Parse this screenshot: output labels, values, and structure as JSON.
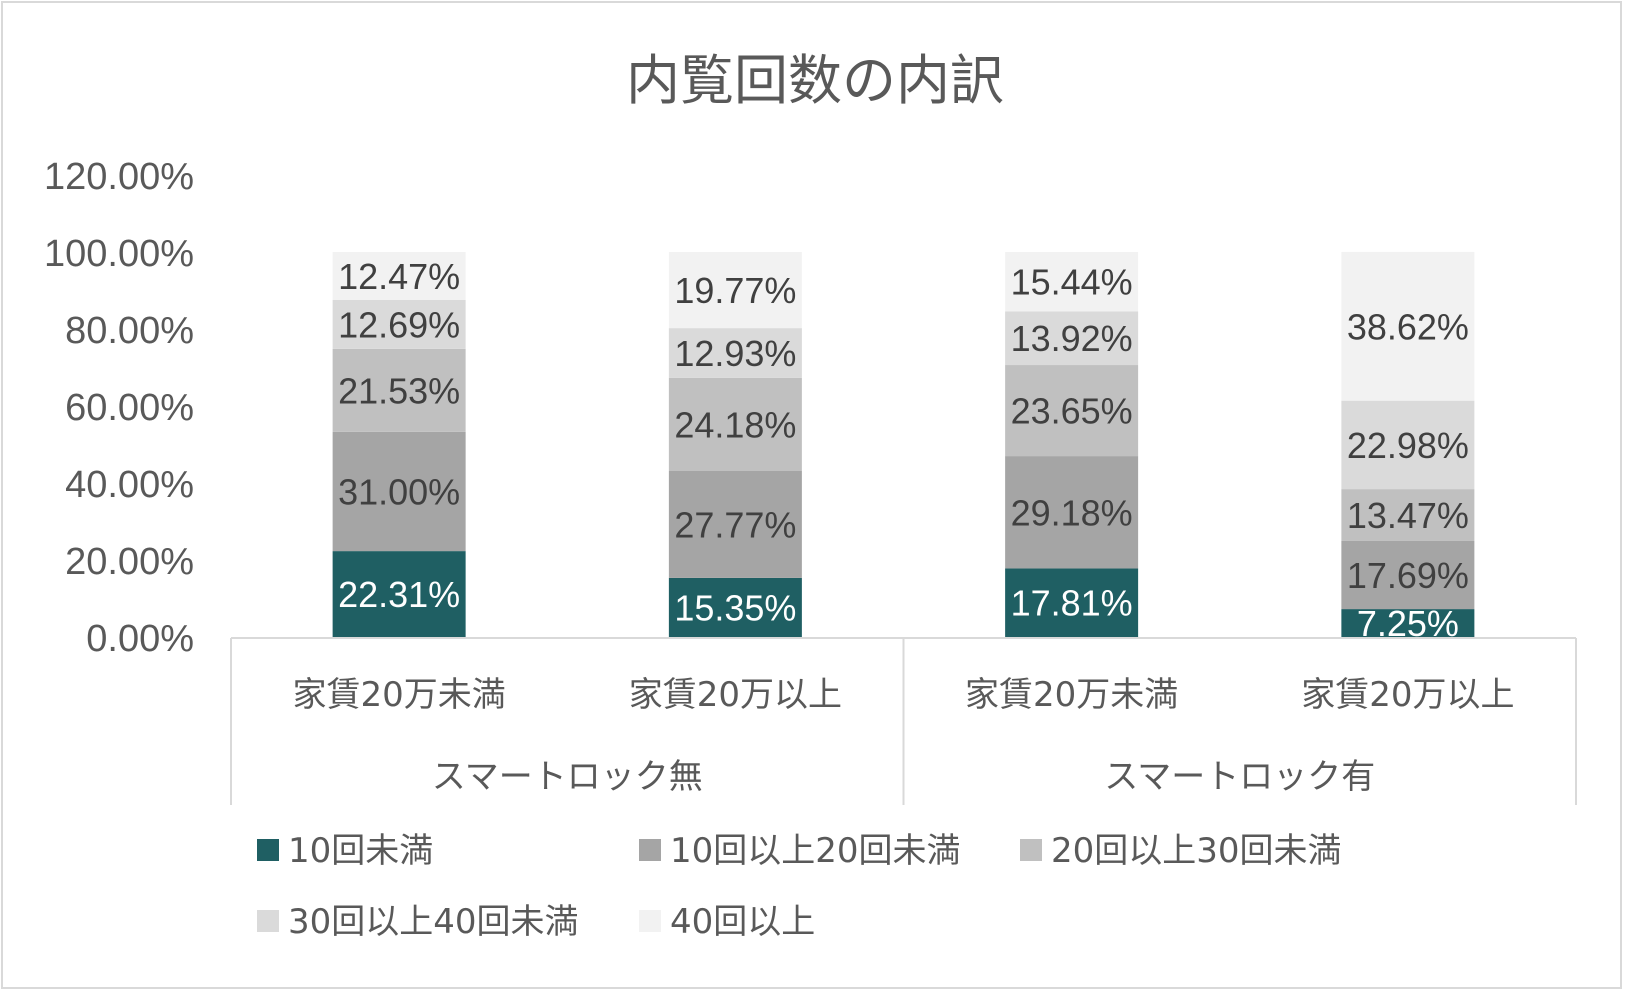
{
  "chart_data": {
    "type": "bar",
    "stacked": true,
    "title": "内覧回数の内訳",
    "categories": [
      "家賃20万未満",
      "家賃20万以上",
      "家賃20万未満",
      "家賃20万以上"
    ],
    "groups": [
      {
        "label": "スマートロック無",
        "categories": [
          0,
          1
        ]
      },
      {
        "label": "スマートロック有",
        "categories": [
          2,
          3
        ]
      }
    ],
    "ylim": [
      0,
      120
    ],
    "yticks": [
      "0.00%",
      "20.00%",
      "40.00%",
      "60.00%",
      "80.00%",
      "100.00%",
      "120.00%"
    ],
    "legend_position": "bottom",
    "grid": false,
    "series": [
      {
        "name": "10回未満",
        "color": "#1f5f63",
        "label_color": "#ffffff",
        "values": [
          22.31,
          15.35,
          17.81,
          7.25
        ],
        "labels": [
          "22.31%",
          "15.35%",
          "17.81%",
          "7.25%"
        ]
      },
      {
        "name": "10回以上20回未満",
        "color": "#a5a5a5",
        "label_color": "#404040",
        "values": [
          31.0,
          27.77,
          29.18,
          17.69
        ],
        "labels": [
          "31.00%",
          "27.77%",
          "29.18%",
          "17.69%"
        ]
      },
      {
        "name": "20回以上30回未満",
        "color": "#c0c0c0",
        "label_color": "#404040",
        "values": [
          21.53,
          24.18,
          23.65,
          13.47
        ],
        "labels": [
          "21.53%",
          "24.18%",
          "23.65%",
          "13.47%"
        ]
      },
      {
        "name": "30回以上40回未満",
        "color": "#dadada",
        "label_color": "#404040",
        "values": [
          12.69,
          12.93,
          13.92,
          22.98
        ],
        "labels": [
          "12.69%",
          "12.93%",
          "13.92%",
          "22.98%"
        ]
      },
      {
        "name": "40回以上",
        "color": "#f2f2f2",
        "label_color": "#404040",
        "values": [
          12.47,
          19.77,
          15.44,
          38.62
        ],
        "labels": [
          "12.47%",
          "19.77%",
          "15.44%",
          "38.62%"
        ]
      }
    ]
  }
}
